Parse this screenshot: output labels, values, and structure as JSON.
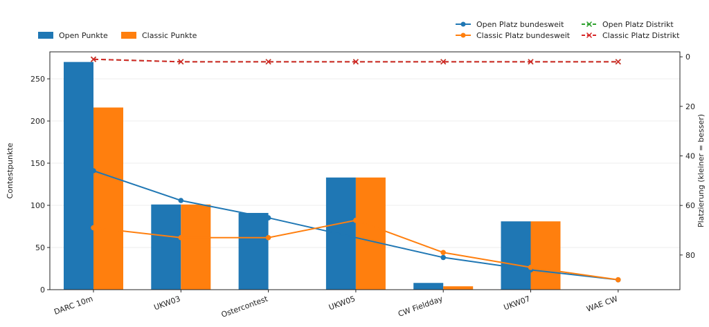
{
  "chart_data": {
    "type": "bar",
    "categories": [
      "DARC 10m",
      "UKW03",
      "Ostercontest",
      "UKW05",
      "CW Fieldday",
      "UKW07",
      "WAE CW"
    ],
    "ylabel": "Contestpunkte",
    "y2label": "Platzierung (kleiner = besser)",
    "ylim": [
      0,
      282
    ],
    "y2lim": [
      94,
      -2
    ],
    "y_ticks": [
      0,
      50,
      100,
      150,
      200,
      250
    ],
    "y2_ticks": [
      0,
      20,
      40,
      60,
      80
    ],
    "grid": true,
    "series": [
      {
        "name": "Open Punkte",
        "kind": "bar",
        "axis": "left",
        "color": "#1f77b4",
        "values": [
          270,
          101,
          91,
          133,
          8,
          81,
          null
        ]
      },
      {
        "name": "Classic Punkte",
        "kind": "bar",
        "axis": "left",
        "color": "#ff7f0e",
        "values": [
          216,
          101,
          null,
          133,
          4,
          81,
          null
        ]
      },
      {
        "name": "Open Platz bundesweit",
        "kind": "line",
        "marker": "circle",
        "axis": "right",
        "color": "#1f77b4",
        "values": [
          46,
          58,
          65,
          null,
          81,
          86,
          90
        ]
      },
      {
        "name": "Classic Platz bundesweit",
        "kind": "line",
        "marker": "circle",
        "axis": "right",
        "color": "#ff7f0e",
        "values": [
          69,
          73,
          73,
          66,
          79,
          85,
          90
        ]
      },
      {
        "name": "Open Platz Distrikt",
        "kind": "line",
        "marker": "x",
        "dashed": true,
        "axis": "right",
        "color": "#2ca02c",
        "values": [
          1,
          2,
          2,
          2,
          2,
          2,
          2
        ]
      },
      {
        "name": "Classic Platz Distrikt",
        "kind": "line",
        "marker": "x",
        "dashed": true,
        "axis": "right",
        "color": "#d62728",
        "values": [
          1,
          2,
          2,
          2,
          2,
          2,
          2
        ]
      }
    ],
    "legend_left": [
      "Open Punkte",
      "Classic Punkte"
    ],
    "legend_right": [
      "Open Platz bundesweit",
      "Open Platz Distrikt",
      "Classic Platz bundesweit",
      "Classic Platz Distrikt"
    ]
  }
}
